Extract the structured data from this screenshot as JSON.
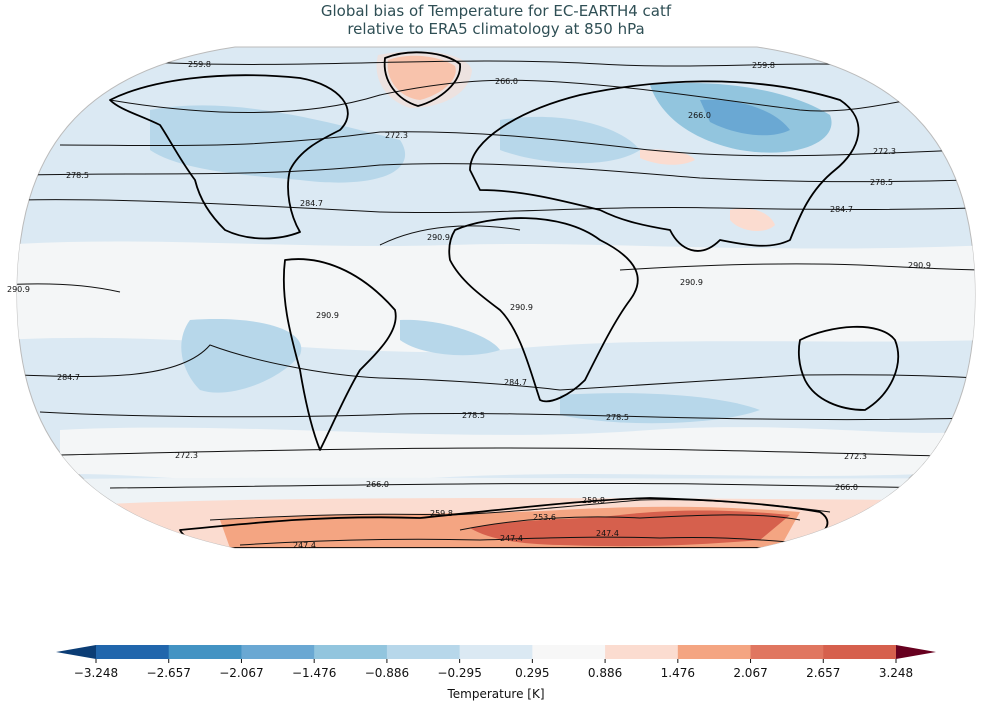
{
  "title": {
    "line1": "Global bias of Temperature for EC-EARTH4 catf",
    "line2": "relative to ERA5 climatology at 850 hPa"
  },
  "projection": "Robinson",
  "contour_labels": [
    "247.4",
    "253.6",
    "259.8",
    "266.0",
    "272.3",
    "278.5",
    "284.7",
    "290.9"
  ],
  "colorbar": {
    "label": "Temperature [K]",
    "ticks": [
      "−3.248",
      "−2.657",
      "−2.067",
      "−1.476",
      "−0.886",
      "−0.295",
      "0.295",
      "0.886",
      "1.476",
      "2.067",
      "2.657",
      "3.248"
    ],
    "colors": [
      "#2166ac",
      "#4393c3",
      "#6aa8d3",
      "#92c5de",
      "#b7d7ea",
      "#dbe9f3",
      "#f7f7f7",
      "#fbdcd0",
      "#f4a582",
      "#e07660",
      "#d6604d",
      "#b2182b",
      "#8b0a22"
    ],
    "extend": "both"
  },
  "colors": {
    "ocean_background": "#dbe9f3",
    "title": "#2f4f55"
  }
}
